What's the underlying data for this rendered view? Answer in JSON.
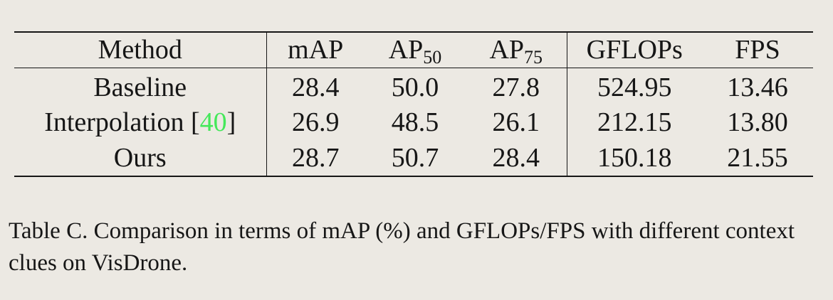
{
  "table": {
    "headers": {
      "method": "Method",
      "map": "mAP",
      "ap50_base": "AP",
      "ap50_sub": "50",
      "ap75_base": "AP",
      "ap75_sub": "75",
      "gflops": "GFLOPs",
      "fps": "FPS"
    },
    "rows": [
      {
        "method": "Baseline",
        "map": "28.4",
        "ap50": "50.0",
        "ap75": "27.8",
        "gflops": "524.95",
        "fps": "13.46"
      },
      {
        "method": "Interpolation",
        "citation_open": "[",
        "citation": "40",
        "citation_close": "]",
        "map": "26.9",
        "ap50": "48.5",
        "ap75": "26.1",
        "gflops": "212.15",
        "fps": "13.80"
      },
      {
        "method": "Ours",
        "map": "28.7",
        "ap50": "50.7",
        "ap75": "28.4",
        "gflops": "150.18",
        "fps": "21.55"
      }
    ]
  },
  "caption": {
    "label": "Table C.",
    "text": "Comparison in terms of mAP (%) and GFLOPs/FPS with different context clues on VisDrone."
  },
  "colors": {
    "background": "#ece9e3",
    "text": "#161616",
    "citation": "#44e85a"
  }
}
